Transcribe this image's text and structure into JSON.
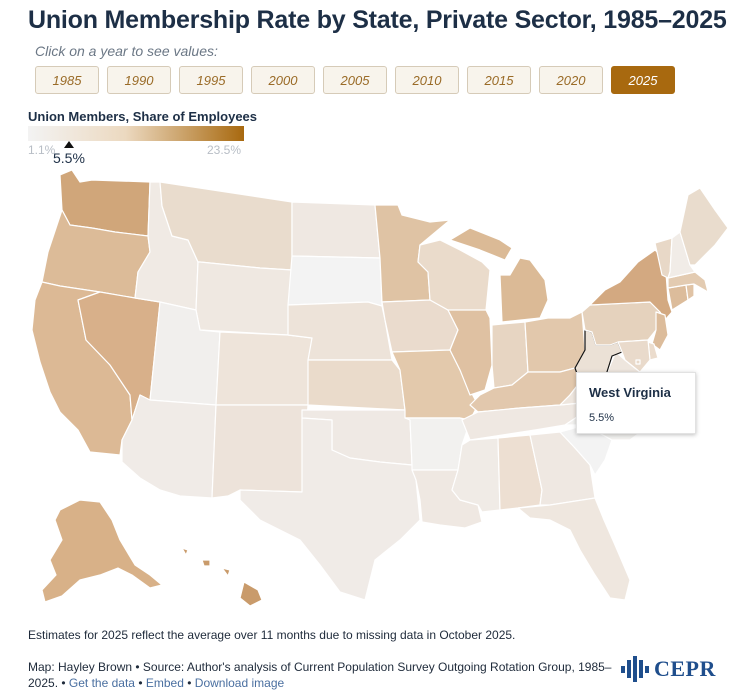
{
  "title": "Union Membership Rate by State, Private Sector, 1985–2025",
  "subtitle": "Click on a year to see values:",
  "years": [
    "1985",
    "1990",
    "1995",
    "2000",
    "2005",
    "2010",
    "2015",
    "2020",
    "2025"
  ],
  "selected_year": "2025",
  "legend": {
    "title": "Union Members, Share of Employees",
    "min_label": "1.1%",
    "max_label": "23.5%",
    "min": 1.1,
    "max": 23.5,
    "marker_label": "5.5%",
    "marker_value": 5.5,
    "low_color": "#f3f3f3",
    "high_color": "#a8690f"
  },
  "tooltip": {
    "state": "West Virginia",
    "value": "5.5%"
  },
  "footnote": "Estimates for 2025 reflect the average over 11 months due to missing data in October 2025.",
  "credit": {
    "text": "Map: Hayley Brown • Source: Author's analysis of Current Population Survey Outgoing Rotation Group, 1985–2025.",
    "sep": "•",
    "links": [
      "Get the data",
      "Embed",
      "Download image"
    ]
  },
  "logo": "CEPR",
  "states_colors": {
    "WA": "#d0a67a",
    "OR": "#dcbb98",
    "CA": "#dcb995",
    "NV": "#d8b08a",
    "ID": "#f0eae4",
    "MT": "#e9dccd",
    "WY": "#efe8e1",
    "UT": "#f1efed",
    "AZ": "#f0ebe7",
    "CO": "#eee4da",
    "NM": "#ede3da",
    "ND": "#efe8e2",
    "SD": "#f3f3f3",
    "NE": "#ede3d9",
    "KS": "#eadbcb",
    "OK": "#efe9e4",
    "TX": "#f0ebe7",
    "MN": "#dfc3a4",
    "IA": "#eadbcd",
    "MO": "#e3c9ac",
    "AR": "#f2f1ef",
    "LA": "#efe8e2",
    "WI": "#eadbcb",
    "IL": "#dfc1a2",
    "MI": "#dbba96",
    "IN": "#e7d5c2",
    "OH": "#e2c8ac",
    "KY": "#e2c8ad",
    "TN": "#efe8e2",
    "MS": "#f0ebe6",
    "AL": "#eddfd2",
    "GA": "#efe8e2",
    "FL": "#efe7df",
    "SC": "#f3f3f3",
    "NC": "#f2f1ef",
    "VA": "#eee6de",
    "WV": "#ebe1d6",
    "PA": "#e5d2bd",
    "NY": "#d3a981",
    "NJ": "#dcbc9b",
    "DE": "#ebdccd",
    "MD": "#e9dacb",
    "CT": "#dcbc9b",
    "RI": "#e0c3a5",
    "MA": "#e3cbb1",
    "VT": "#e8d8c7",
    "NH": "#f1ece7",
    "ME": "#e9dccd",
    "AK": "#d8b188",
    "HI": "#c99b6b",
    "DC": "#e9dacb"
  }
}
